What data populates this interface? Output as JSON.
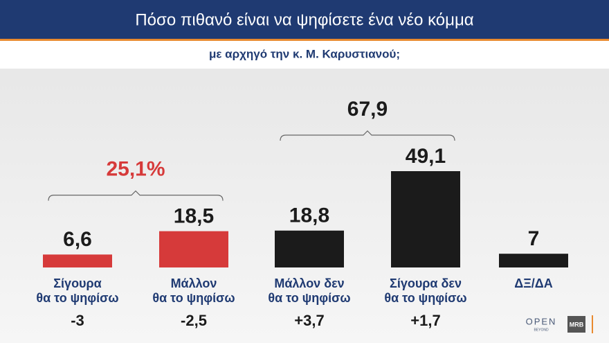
{
  "chart_data": {
    "type": "bar",
    "title": "Πόσο πιθανό είναι να ψηφίσετε ένα νέο κόμμα",
    "subtitle": "με αρχηγό την κ. Μ. Καρυστιανού;",
    "categories": [
      [
        "Σίγουρα",
        "θα το ψηφίσω"
      ],
      [
        "Μάλλον",
        "θα το ψηφίσω"
      ],
      [
        "Μάλλον δεν",
        "θα το ψηφίσω"
      ],
      [
        "Σίγουρα δεν",
        "θα το ψηφίσω"
      ],
      [
        "ΔΞ/ΔΑ"
      ]
    ],
    "values": [
      6.6,
      18.5,
      18.8,
      49.1,
      7
    ],
    "value_labels": [
      "6,6",
      "18,5",
      "18,8",
      "49,1",
      "7"
    ],
    "colors": [
      "#d63a3a",
      "#d63a3a",
      "#1b1b1b",
      "#1b1b1b",
      "#1b1b1b"
    ],
    "change_labels": [
      "-3",
      "-2,5",
      "+3,7",
      "+1,7",
      null
    ],
    "brackets": [
      {
        "value": 25.1,
        "label": "25,1%",
        "from": 0,
        "to": 1,
        "color": "#d63a3a"
      },
      {
        "value": 67.9,
        "label": "67,9",
        "from": 2,
        "to": 3,
        "color": "#1b1b1b"
      }
    ],
    "logos": [
      "OPEN",
      "BEYOND",
      "MRB"
    ]
  }
}
